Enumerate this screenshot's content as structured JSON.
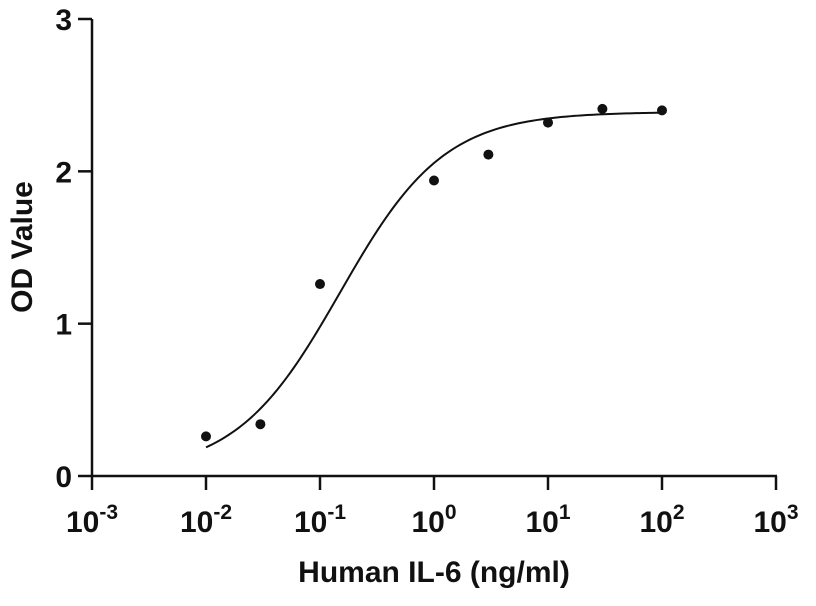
{
  "chart_data": {
    "type": "scatter",
    "title": "",
    "xlabel": "Human IL-6 (ng/ml)",
    "ylabel": "OD Value",
    "x_scale": "log",
    "xlim": [
      0.001,
      1000
    ],
    "ylim": [
      0,
      3
    ],
    "x_ticks": [
      {
        "value": 0.001,
        "base": "10",
        "exp": "-3"
      },
      {
        "value": 0.01,
        "base": "10",
        "exp": "-2"
      },
      {
        "value": 0.1,
        "base": "10",
        "exp": "-1"
      },
      {
        "value": 1,
        "base": "10",
        "exp": "0"
      },
      {
        "value": 10,
        "base": "10",
        "exp": "1"
      },
      {
        "value": 100,
        "base": "10",
        "exp": "2"
      },
      {
        "value": 1000,
        "base": "10",
        "exp": "3"
      }
    ],
    "y_ticks": [
      {
        "value": 0,
        "label": "0"
      },
      {
        "value": 1,
        "label": "1"
      },
      {
        "value": 2,
        "label": "2"
      },
      {
        "value": 3,
        "label": "3"
      }
    ],
    "grid": false,
    "series": [
      {
        "x": [
          0.01,
          0.03,
          0.1,
          1,
          3,
          10,
          30,
          100
        ],
        "y": [
          0.26,
          0.34,
          1.26,
          1.94,
          2.11,
          2.32,
          2.41,
          2.4
        ],
        "marker": "circle",
        "color": "#111111"
      }
    ],
    "fit_curve": {
      "model": "4PL",
      "bottom": 0.02,
      "top": 2.39,
      "ec50": 0.15,
      "hill": 0.95,
      "x_range": [
        0.01,
        100
      ],
      "color": "#111111"
    }
  }
}
